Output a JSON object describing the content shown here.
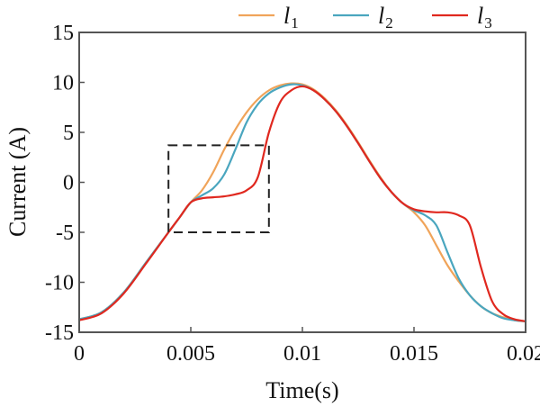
{
  "chart_data": {
    "type": "line",
    "title": "",
    "xlabel": "Time(s)",
    "ylabel": "Current (A)",
    "xlim": [
      0,
      0.02
    ],
    "ylim": [
      -15,
      15
    ],
    "x_ticks": [
      0,
      0.005,
      0.01,
      0.015,
      0.02
    ],
    "x_tick_labels": [
      "0",
      "0.005",
      "0.01",
      "0.015",
      "0.02"
    ],
    "y_ticks": [
      15,
      10,
      5,
      0,
      -5,
      -10,
      -15
    ],
    "y_tick_labels": [
      "15",
      "10",
      "5",
      "0",
      "-5",
      "-10",
      "-15"
    ],
    "grid": false,
    "legend_position": "top-right",
    "series": [
      {
        "name": "l",
        "subscript": "1",
        "color": "#f0a45a",
        "x": [
          0,
          0.001,
          0.002,
          0.003,
          0.004,
          0.0045,
          0.005,
          0.0055,
          0.006,
          0.0065,
          0.007,
          0.0075,
          0.008,
          0.0085,
          0.009,
          0.0095,
          0.01,
          0.0105,
          0.011,
          0.0115,
          0.012,
          0.0125,
          0.013,
          0.0135,
          0.014,
          0.0145,
          0.015,
          0.0155,
          0.016,
          0.0165,
          0.017,
          0.0175,
          0.018,
          0.0185,
          0.019,
          0.0195,
          0.02
        ],
        "y": [
          -13.7,
          -13.0,
          -11.0,
          -8.0,
          -5.0,
          -3.5,
          -2.0,
          -0.8,
          1.0,
          3.3,
          5.3,
          7.0,
          8.3,
          9.2,
          9.7,
          9.9,
          9.8,
          9.3,
          8.4,
          7.2,
          5.7,
          4.0,
          2.2,
          0.5,
          -1.0,
          -2.1,
          -3.0,
          -4.3,
          -6.3,
          -8.3,
          -9.9,
          -11.3,
          -12.4,
          -13.1,
          -13.5,
          -13.8,
          -13.9
        ]
      },
      {
        "name": "l",
        "subscript": "2",
        "color": "#4aa6bf",
        "x": [
          0,
          0.001,
          0.002,
          0.003,
          0.004,
          0.0045,
          0.005,
          0.0055,
          0.006,
          0.0065,
          0.007,
          0.0075,
          0.008,
          0.0085,
          0.009,
          0.0095,
          0.01,
          0.0105,
          0.011,
          0.0115,
          0.012,
          0.0125,
          0.013,
          0.0135,
          0.014,
          0.0145,
          0.015,
          0.0155,
          0.016,
          0.0165,
          0.017,
          0.0175,
          0.018,
          0.0185,
          0.019,
          0.0195,
          0.02
        ],
        "y": [
          -13.7,
          -13.0,
          -11.0,
          -8.0,
          -5.0,
          -3.5,
          -2.0,
          -1.3,
          -0.6,
          0.8,
          3.3,
          6.0,
          7.8,
          8.9,
          9.5,
          9.8,
          9.7,
          9.2,
          8.3,
          7.1,
          5.6,
          3.9,
          2.1,
          0.4,
          -1.0,
          -2.1,
          -2.8,
          -3.3,
          -4.3,
          -7.0,
          -9.6,
          -11.3,
          -12.4,
          -13.1,
          -13.6,
          -13.8,
          -13.9
        ]
      },
      {
        "name": "l",
        "subscript": "3",
        "color": "#e0281f",
        "x": [
          0,
          0.001,
          0.002,
          0.003,
          0.004,
          0.0045,
          0.005,
          0.0055,
          0.006,
          0.0065,
          0.007,
          0.0075,
          0.008,
          0.0085,
          0.009,
          0.0095,
          0.01,
          0.0105,
          0.011,
          0.0115,
          0.012,
          0.0125,
          0.013,
          0.0135,
          0.014,
          0.0145,
          0.015,
          0.0155,
          0.016,
          0.0165,
          0.017,
          0.0175,
          0.018,
          0.0185,
          0.019,
          0.0195,
          0.02
        ],
        "y": [
          -13.8,
          -13.1,
          -11.1,
          -8.1,
          -5.0,
          -3.5,
          -2.0,
          -1.6,
          -1.5,
          -1.4,
          -1.2,
          -0.8,
          0.5,
          5.0,
          8.0,
          9.2,
          9.6,
          9.2,
          8.3,
          7.1,
          5.6,
          3.9,
          2.1,
          0.4,
          -1.0,
          -2.1,
          -2.7,
          -2.9,
          -3.0,
          -3.0,
          -3.3,
          -4.3,
          -8.5,
          -11.9,
          -13.2,
          -13.7,
          -13.9
        ]
      }
    ],
    "annotations": [
      {
        "type": "dashed-box",
        "x_range": [
          0.004,
          0.0085
        ],
        "y_range": [
          -5,
          3.7
        ]
      }
    ]
  }
}
